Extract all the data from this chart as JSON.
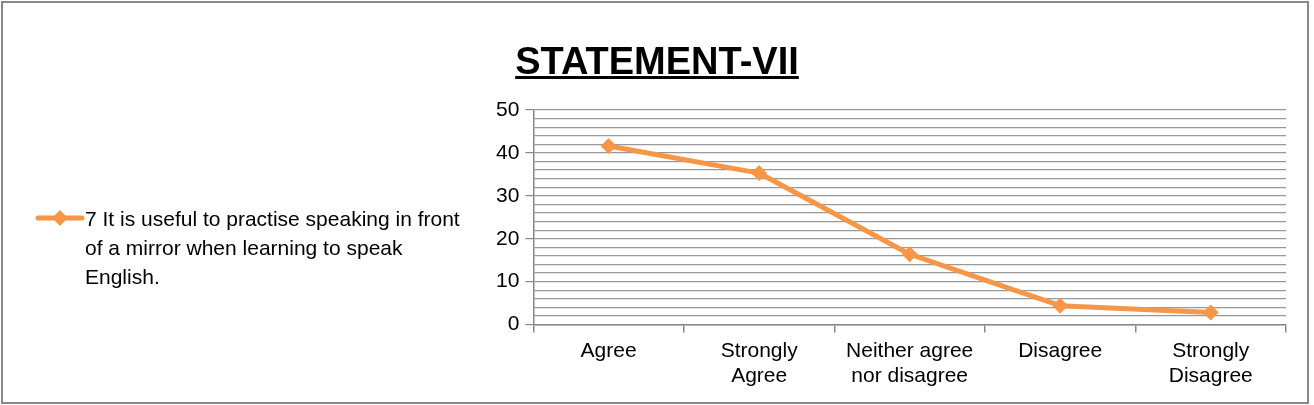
{
  "chart_data": {
    "type": "line",
    "title": "STATEMENT-VII",
    "categories": [
      "Agree",
      "Strongly Agree",
      "Neither agree nor disagree",
      "Disagree",
      "Strongly Disagree"
    ],
    "series": [
      {
        "name": "7 It is useful to practise speaking in front of a mirror when learning to speak English.",
        "color": "#f79646",
        "values": [
          41.6,
          35.3,
          16.4,
          4.4,
          2.8
        ]
      }
    ],
    "ylim": [
      0,
      50
    ],
    "yticks": [
      0,
      {
        "value": 2,
        "label": null
      },
      {
        "value": 4,
        "label": null
      },
      {
        "value": 6,
        "label": null
      },
      {
        "value": 8,
        "label": null
      },
      10,
      {
        "value": 12,
        "label": null
      },
      {
        "value": 14,
        "label": null
      },
      {
        "value": 16,
        "label": null
      },
      {
        "value": 18,
        "label": null
      },
      20,
      {
        "value": 22,
        "label": null
      },
      {
        "value": 24,
        "label": null
      },
      {
        "value": 26,
        "label": null
      },
      {
        "value": 28,
        "label": null
      },
      30,
      {
        "value": 32,
        "label": null
      },
      {
        "value": 34,
        "label": null
      },
      {
        "value": 36,
        "label": null
      },
      {
        "value": 38,
        "label": null
      },
      40,
      {
        "value": 42,
        "label": null
      },
      {
        "value": 44,
        "label": null
      },
      {
        "value": 46,
        "label": null
      },
      {
        "value": 48,
        "label": null
      },
      50
    ],
    "grid": "y",
    "legend": "left",
    "marker": "diamond",
    "line_style": "solid"
  }
}
